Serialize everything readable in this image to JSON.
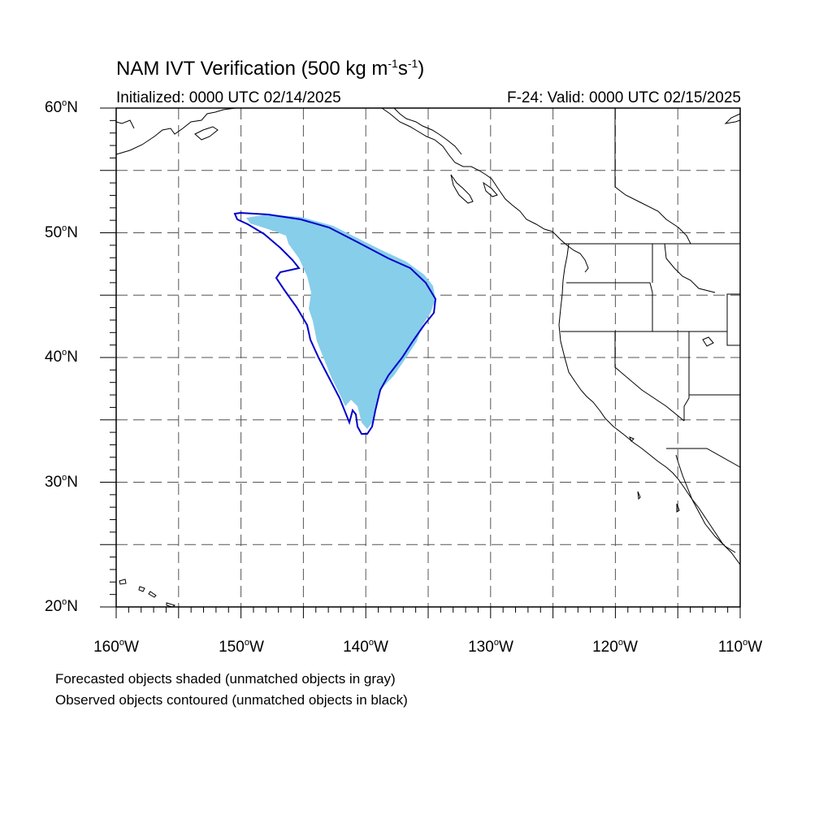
{
  "title": {
    "main": "NAM IVT Verification (500 kg m",
    "sup1": "-1",
    "mid": "s",
    "sup2": "-1",
    "end": ")"
  },
  "initialized": "Initialized: 0000 UTC 02/14/2025",
  "valid": "F-24: Valid: 0000 UTC 02/15/2025",
  "lat_labels": [
    "60",
    "50",
    "40",
    "30",
    "20"
  ],
  "lat_suffix": "N",
  "lon_labels": [
    "160",
    "150",
    "140",
    "130",
    "120",
    "110"
  ],
  "lon_suffix": "W",
  "degree": "o",
  "legend": {
    "line1": "Forecasted objects shaded (unmatched objects in gray)",
    "line2": "Observed objects contoured (unmatched objects in black)"
  },
  "colors": {
    "forecast_fill": "#87ceeb",
    "observed_contour": "#0000cc",
    "coastline": "#000000",
    "grid": "#555555"
  },
  "map": {
    "lon_range": [
      -160,
      -110
    ],
    "lat_range": [
      20,
      60
    ],
    "grid_lon_step": 5,
    "grid_lat_step": 5
  }
}
